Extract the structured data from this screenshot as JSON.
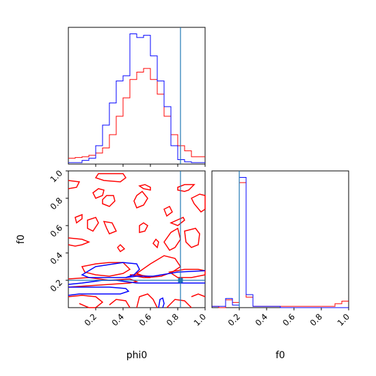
{
  "chart_data": {
    "type": "corner",
    "parameters": [
      {
        "name": "phi0",
        "xlabel": "phi0"
      },
      {
        "name": "f0",
        "xlabel": "f0",
        "ylabel": "f0"
      }
    ],
    "axes": {
      "phi0_range": [
        0.0,
        1.0
      ],
      "f0_range": [
        0.0,
        1.0
      ],
      "phi0_tick_labels": [
        "0.2",
        "0.4",
        "0.6",
        "0.8",
        "1.0"
      ],
      "f0_tick_labels_x": [
        "0.2",
        "0.4",
        "0.6",
        "0.8",
        "1.0"
      ],
      "f0_tick_labels_y": [
        "0.2",
        "0.4",
        "0.6",
        "0.8",
        "1.0"
      ]
    },
    "truth": {
      "phi0": 0.82,
      "f0": 0.2,
      "color": "#1f77b4"
    },
    "series_colors": {
      "red": "#ff0000",
      "blue": "#0000ff"
    },
    "phi0_hist": {
      "edges": [
        0,
        0.05,
        0.1,
        0.15,
        0.2,
        0.25,
        0.3,
        0.35,
        0.4,
        0.45,
        0.5,
        0.55,
        0.6,
        0.65,
        0.7,
        0.75,
        0.8,
        0.85,
        0.9,
        0.95,
        1.0
      ],
      "red": [
        8,
        9,
        10,
        12,
        15,
        22,
        40,
        65,
        90,
        115,
        125,
        130,
        115,
        95,
        65,
        40,
        25,
        18,
        10,
        10
      ],
      "blue": [
        2,
        2,
        5,
        8,
        25,
        53,
        83,
        113,
        120,
        177,
        172,
        175,
        147,
        113,
        78,
        25,
        6,
        3,
        2,
        2
      ]
    },
    "f0_hist": {
      "edges": [
        0,
        0.05,
        0.1,
        0.15,
        0.2,
        0.25,
        0.3,
        0.35,
        0.4,
        0.45,
        0.5,
        0.55,
        0.6,
        0.65,
        0.7,
        0.75,
        0.8,
        0.85,
        0.9,
        0.95,
        1.0
      ],
      "red": [
        1,
        0,
        6,
        4,
        96,
        8,
        1,
        1,
        1,
        1,
        1,
        1,
        1,
        1,
        1,
        1,
        1,
        1,
        3,
        5
      ],
      "blue": [
        1,
        1,
        7,
        2,
        100,
        10,
        1,
        1,
        1,
        1,
        0,
        0,
        0,
        0,
        0,
        0,
        0,
        0,
        0,
        0
      ]
    },
    "contours_red": [
      [
        [
          0.0,
          0.93
        ],
        [
          0.08,
          0.92
        ],
        [
          0.06,
          0.88
        ],
        [
          0.0,
          0.87
        ]
      ],
      [
        [
          0.22,
          0.98
        ],
        [
          0.4,
          0.98
        ],
        [
          0.42,
          0.95
        ],
        [
          0.38,
          0.92
        ],
        [
          0.26,
          0.93
        ],
        [
          0.2,
          0.95
        ]
      ],
      [
        [
          0.52,
          0.89
        ],
        [
          0.56,
          0.9
        ],
        [
          0.6,
          0.88
        ],
        [
          0.6,
          0.86
        ],
        [
          0.55,
          0.87
        ]
      ],
      [
        [
          0.2,
          0.8
        ],
        [
          0.25,
          0.82
        ],
        [
          0.26,
          0.86
        ],
        [
          0.22,
          0.87
        ],
        [
          0.18,
          0.84
        ]
      ],
      [
        [
          0.25,
          0.76
        ],
        [
          0.3,
          0.74
        ],
        [
          0.34,
          0.78
        ],
        [
          0.33,
          0.82
        ],
        [
          0.28,
          0.82
        ],
        [
          0.25,
          0.79
        ]
      ],
      [
        [
          0.5,
          0.73
        ],
        [
          0.55,
          0.75
        ],
        [
          0.58,
          0.8
        ],
        [
          0.54,
          0.85
        ],
        [
          0.5,
          0.82
        ],
        [
          0.48,
          0.78
        ]
      ],
      [
        [
          0.7,
          0.72
        ],
        [
          0.74,
          0.74
        ],
        [
          0.76,
          0.7
        ],
        [
          0.72,
          0.67
        ]
      ],
      [
        [
          0.8,
          0.88
        ],
        [
          0.85,
          0.9
        ],
        [
          0.92,
          0.9
        ],
        [
          0.88,
          0.86
        ],
        [
          0.85,
          0.85
        ],
        [
          0.8,
          0.86
        ]
      ],
      [
        [
          0.9,
          0.8
        ],
        [
          0.96,
          0.83
        ],
        [
          1.0,
          0.82
        ],
        [
          1.0,
          0.72
        ],
        [
          0.97,
          0.7
        ],
        [
          0.92,
          0.76
        ]
      ],
      [
        [
          0.05,
          0.66
        ],
        [
          0.1,
          0.68
        ],
        [
          0.1,
          0.65
        ],
        [
          0.06,
          0.62
        ]
      ],
      [
        [
          0.14,
          0.64
        ],
        [
          0.2,
          0.66
        ],
        [
          0.22,
          0.62
        ],
        [
          0.18,
          0.56
        ],
        [
          0.14,
          0.58
        ]
      ],
      [
        [
          0.26,
          0.63
        ],
        [
          0.32,
          0.62
        ],
        [
          0.35,
          0.56
        ],
        [
          0.3,
          0.54
        ],
        [
          0.28,
          0.58
        ]
      ],
      [
        [
          0.52,
          0.6
        ],
        [
          0.55,
          0.62
        ],
        [
          0.58,
          0.6
        ],
        [
          0.56,
          0.56
        ],
        [
          0.52,
          0.55
        ]
      ],
      [
        [
          0.75,
          0.62
        ],
        [
          0.8,
          0.6
        ],
        [
          0.85,
          0.64
        ],
        [
          0.84,
          0.66
        ]
      ],
      [
        [
          0.85,
          0.56
        ],
        [
          0.93,
          0.58
        ],
        [
          0.96,
          0.54
        ],
        [
          0.95,
          0.46
        ],
        [
          0.9,
          0.44
        ],
        [
          0.86,
          0.48
        ]
      ],
      [
        [
          0.0,
          0.51
        ],
        [
          0.1,
          0.5
        ],
        [
          0.15,
          0.48
        ],
        [
          0.1,
          0.46
        ],
        [
          0.05,
          0.45
        ],
        [
          0.0,
          0.46
        ]
      ],
      [
        [
          0.36,
          0.44
        ],
        [
          0.38,
          0.46
        ],
        [
          0.41,
          0.43
        ],
        [
          0.38,
          0.41
        ]
      ],
      [
        [
          0.62,
          0.47
        ],
        [
          0.64,
          0.5
        ],
        [
          0.66,
          0.48
        ],
        [
          0.65,
          0.44
        ]
      ],
      [
        [
          0.7,
          0.48
        ],
        [
          0.75,
          0.55
        ],
        [
          0.8,
          0.58
        ],
        [
          0.82,
          0.5
        ],
        [
          0.78,
          0.44
        ],
        [
          0.74,
          0.42
        ]
      ],
      [
        [
          0.1,
          0.3
        ],
        [
          0.2,
          0.32
        ],
        [
          0.3,
          0.33
        ],
        [
          0.4,
          0.33
        ],
        [
          0.45,
          0.28
        ],
        [
          0.4,
          0.25
        ],
        [
          0.3,
          0.23
        ],
        [
          0.2,
          0.24
        ],
        [
          0.12,
          0.26
        ]
      ],
      [
        [
          0.5,
          0.25
        ],
        [
          0.6,
          0.32
        ],
        [
          0.7,
          0.38
        ],
        [
          0.78,
          0.36
        ],
        [
          0.82,
          0.3
        ],
        [
          0.76,
          0.26
        ],
        [
          0.68,
          0.23
        ],
        [
          0.58,
          0.22
        ]
      ],
      [
        [
          0.0,
          0.21
        ],
        [
          0.15,
          0.22
        ],
        [
          0.3,
          0.2
        ],
        [
          0.45,
          0.21
        ],
        [
          0.5,
          0.19
        ],
        [
          0.45,
          0.18
        ],
        [
          0.3,
          0.17
        ],
        [
          0.15,
          0.16
        ],
        [
          0.0,
          0.15
        ]
      ],
      [
        [
          0.45,
          0.24
        ],
        [
          0.5,
          0.23
        ],
        [
          0.55,
          0.22
        ],
        [
          0.6,
          0.22
        ],
        [
          0.58,
          0.23
        ],
        [
          0.5,
          0.24
        ]
      ],
      [
        [
          0.74,
          0.26
        ],
        [
          0.85,
          0.28
        ],
        [
          0.95,
          0.28
        ],
        [
          1.0,
          0.27
        ],
        [
          1.0,
          0.24
        ],
        [
          0.9,
          0.22
        ],
        [
          0.8,
          0.22
        ]
      ],
      [
        [
          0.0,
          0.08
        ],
        [
          0.1,
          0.09
        ],
        [
          0.2,
          0.08
        ],
        [
          0.25,
          0.04
        ],
        [
          0.2,
          0.0
        ],
        [
          0.15,
          0.0
        ],
        [
          0.08,
          0.03
        ]
      ],
      [
        [
          0.3,
          0.02
        ],
        [
          0.35,
          0.06
        ],
        [
          0.42,
          0.05
        ],
        [
          0.45,
          0.0
        ]
      ],
      [
        [
          0.5,
          0.0
        ],
        [
          0.52,
          0.08
        ],
        [
          0.58,
          0.1
        ],
        [
          0.62,
          0.06
        ],
        [
          0.65,
          0.0
        ]
      ],
      [
        [
          0.72,
          0.0
        ],
        [
          0.78,
          0.06
        ],
        [
          0.85,
          0.05
        ],
        [
          0.9,
          0.0
        ]
      ],
      [
        [
          0.9,
          0.08
        ],
        [
          0.95,
          0.1
        ],
        [
          1.0,
          0.08
        ]
      ]
    ],
    "contours_blue": [
      [
        [
          0.0,
          0.09
        ],
        [
          0.08,
          0.1
        ],
        [
          0.15,
          0.1
        ],
        [
          0.3,
          0.1
        ],
        [
          0.38,
          0.1
        ],
        [
          0.44,
          0.12
        ],
        [
          0.42,
          0.14
        ],
        [
          0.3,
          0.15
        ],
        [
          0.15,
          0.15
        ],
        [
          0.0,
          0.15
        ]
      ],
      [
        [
          0.0,
          0.17
        ],
        [
          0.1,
          0.18
        ],
        [
          0.25,
          0.2
        ],
        [
          0.35,
          0.2
        ],
        [
          0.42,
          0.19
        ],
        [
          0.5,
          0.18
        ],
        [
          0.7,
          0.18
        ],
        [
          0.85,
          0.18
        ],
        [
          1.0,
          0.18
        ]
      ],
      [
        [
          0.1,
          0.24
        ],
        [
          0.2,
          0.3
        ],
        [
          0.4,
          0.33
        ],
        [
          0.5,
          0.32
        ],
        [
          0.52,
          0.28
        ],
        [
          0.48,
          0.24
        ],
        [
          0.42,
          0.22
        ],
        [
          0.3,
          0.22
        ],
        [
          0.15,
          0.22
        ]
      ],
      [
        [
          0.42,
          0.22
        ],
        [
          0.5,
          0.23
        ],
        [
          0.62,
          0.23
        ],
        [
          0.68,
          0.24
        ],
        [
          0.8,
          0.26
        ],
        [
          1.0,
          0.27
        ]
      ],
      [
        [
          0.66,
          0.0
        ],
        [
          0.67,
          0.06
        ],
        [
          0.69,
          0.07
        ],
        [
          0.7,
          0.03
        ],
        [
          0.69,
          0.0
        ]
      ]
    ]
  }
}
